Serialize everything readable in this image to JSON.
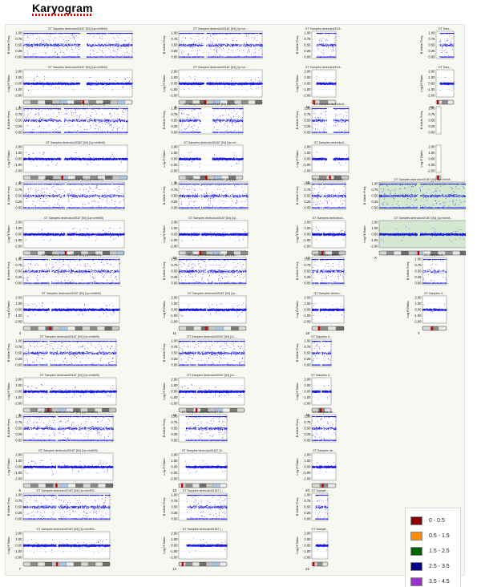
{
  "page": {
    "title": "Karyogram"
  },
  "colors": {
    "points": "#1414e6",
    "plot_bg": "#ffffff",
    "canvas_bg": "#f7f8f2",
    "highlight_bg": "#d4ead0"
  },
  "legend": {
    "items": [
      {
        "label": "0 - 0.5",
        "color": "#8b0000"
      },
      {
        "label": "0.5 - 1.5",
        "color": "#ff8c00"
      },
      {
        "label": "1.5 - 2.5",
        "color": "#006400"
      },
      {
        "label": "2.5 - 3.5",
        "color": "#00008b"
      },
      {
        "label": "3.5 - 4.5",
        "color": "#9932cc"
      }
    ]
  },
  "chart_data": {
    "type": "scatter",
    "y_axes": {
      "baf": {
        "label": "B Allele Freq",
        "ticks": [
          "1.00",
          "0.75",
          "0.50",
          "0.25",
          "0.00"
        ],
        "range": [
          0,
          1
        ]
      },
      "logr": {
        "label": "Log R Ratio",
        "ticks": [
          "2.00",
          "1.00",
          "0.00",
          "-1.00",
          "-2.00"
        ],
        "range": [
          -2,
          2
        ]
      }
    },
    "chromosomes": [
      {
        "id": "1",
        "baf_title": "GT Samples dedrvuko00187 [54] (1p>chr8hl0)",
        "logr_title": "GT Samples dedrvuko00187 [54] (1p>chr8hl0)",
        "gap": [
          0.52,
          0.58
        ]
      },
      {
        "id": "2",
        "baf_title": "GT Samples dedrvuko00187 [54] (1p>chr8hl0)",
        "logr_title": "GT Samples dedrvuko00187 [54] (1p>chr8hl0)",
        "gap": [
          0.36,
          0.39
        ]
      },
      {
        "id": "3",
        "baf_title": "GT Samples dedrvuko00187 [54] (1p>chr8hl0)",
        "logr_title": "GT Samples dedrvuko00187 [54] (1p>chr8hl0)",
        "gap": [
          0.41,
          0.43
        ]
      },
      {
        "id": "4",
        "baf_title": "GT Samples dedrvuko00187 [54] (1p>chr8hl0)",
        "logr_title": "GT Samples dedrvuko00187 [54] (1p>chr8hl0)",
        "gap": [
          0.27,
          0.29
        ]
      },
      {
        "id": "5",
        "baf_title": "GT Samples dedrvuko00187 [54] (1p>chr8hl0)",
        "logr_title": "GT Samples dedrvuko00187 [54] (1p>chr8hl0)",
        "gap": [
          0.26,
          0.28
        ]
      },
      {
        "id": "6",
        "baf_title": "GT Samples dedrvuko00187 [54] (1p>chr8hl0)",
        "logr_title": "GT Samples dedrvuko00187 [54] (1p>chr8hl0)",
        "gap": [
          0.36,
          0.38
        ]
      },
      {
        "id": "7",
        "baf_title": "GT Samples dedrvuko00187 [54] (1p>chr8h3...",
        "logr_title": "GT Samples dedrvuko00187 [54] (1p>chr8h3...",
        "gap": [
          0.38,
          0.4
        ]
      },
      {
        "id": "8",
        "baf_title": "GT Samples dedrvuko00187 [54] (1p>ch...",
        "logr_title": "GT Samples dedrvuko00187 [54] (1p>ch...",
        "gap": [
          0.3,
          0.33
        ]
      },
      {
        "id": "9",
        "baf_title": "GT Samples dedrvuko00187 [54] (1p>ch...",
        "logr_title": "GT Samples dedrvuko00187 [54] (1p>ch...",
        "gap": [
          0.34,
          0.52
        ]
      },
      {
        "id": "10",
        "baf_title": "GT Samples dedrvuko00187 [54] (1p...",
        "logr_title": "GT Samples dedrvuko00187 [54] (1p...",
        "gap": [
          0.3,
          0.32
        ]
      },
      {
        "id": "11",
        "baf_title": "GT Samples dedrvuko00187 [54] (1p...",
        "logr_title": "GT Samples dedrvuko00187 [54] (1p...",
        "gap": [
          0.4,
          0.42
        ]
      },
      {
        "id": "12",
        "baf_title": "GT Samples dedrvuko00187 [54] (1c...",
        "logr_title": "GT Samples dedrvuko00187 [54] (1c...",
        "gap": [
          0.26,
          0.28
        ]
      },
      {
        "id": "13",
        "baf_title": "GT Samples dedrvuko00187 (5...",
        "logr_title": "GT Samples dedrvuko00187 (5...",
        "gap": [
          0.0,
          0.14
        ]
      },
      {
        "id": "14",
        "baf_title": "GT Samples dedrvuko00187 (...",
        "logr_title": "GT Samples dedrvuko00187 (...",
        "gap": [
          0.0,
          0.16
        ]
      },
      {
        "id": "15",
        "baf_title": "GT Samples dedrvuko0013...",
        "logr_title": "GT Samples dedrvuko0013...",
        "gap": [
          0.0,
          0.18
        ]
      },
      {
        "id": "16",
        "baf_title": "GT Samples dedrvuko0...",
        "logr_title": "GT Samples dedrvuko0...",
        "gap": [
          0.4,
          0.58
        ]
      },
      {
        "id": "17",
        "baf_title": "GT Samples dedrvuko0...",
        "logr_title": "GT Samples dedrvuko0...",
        "gap": [
          0.3,
          0.33
        ]
      },
      {
        "id": "18",
        "baf_title": "GT Samples dedrvu...",
        "logr_title": "GT Samples dedrvu...",
        "gap": [
          0.2,
          0.24
        ]
      },
      {
        "id": "19",
        "baf_title": "GT Samples d...",
        "logr_title": "GT Samples d...",
        "gap": [
          0.42,
          0.5
        ]
      },
      {
        "id": "20",
        "baf_title": "GT Samples de...",
        "logr_title": "GT Samples de...",
        "gap": [
          0.44,
          0.47
        ]
      },
      {
        "id": "21",
        "baf_title": "GT Sample...",
        "logr_title": "GT Sample...",
        "gap": [
          0.0,
          0.22
        ]
      },
      {
        "id": "22",
        "baf_title": "GT Sam...",
        "logr_title": "GT Sam...",
        "gap": [
          0.0,
          0.2
        ]
      },
      {
        "id": "X",
        "baf_title": "GT Samples dedrvuko00187 [54] (1p>chr84...",
        "logr_title": "GT Samples dedrvuko00187 [54] (1p>chr84...",
        "gap": [
          0.43,
          0.46
        ],
        "highlight": true
      },
      {
        "id": "Y",
        "baf_title": "GT Samples d...",
        "logr_title": "GT Samples d...",
        "gap": [
          0.0,
          0.0
        ],
        "sparse": true
      },
      {
        "id": "M",
        "baf_title": "",
        "logr_title": "",
        "gap": [
          0.0,
          0.0
        ],
        "empty": true
      }
    ]
  }
}
